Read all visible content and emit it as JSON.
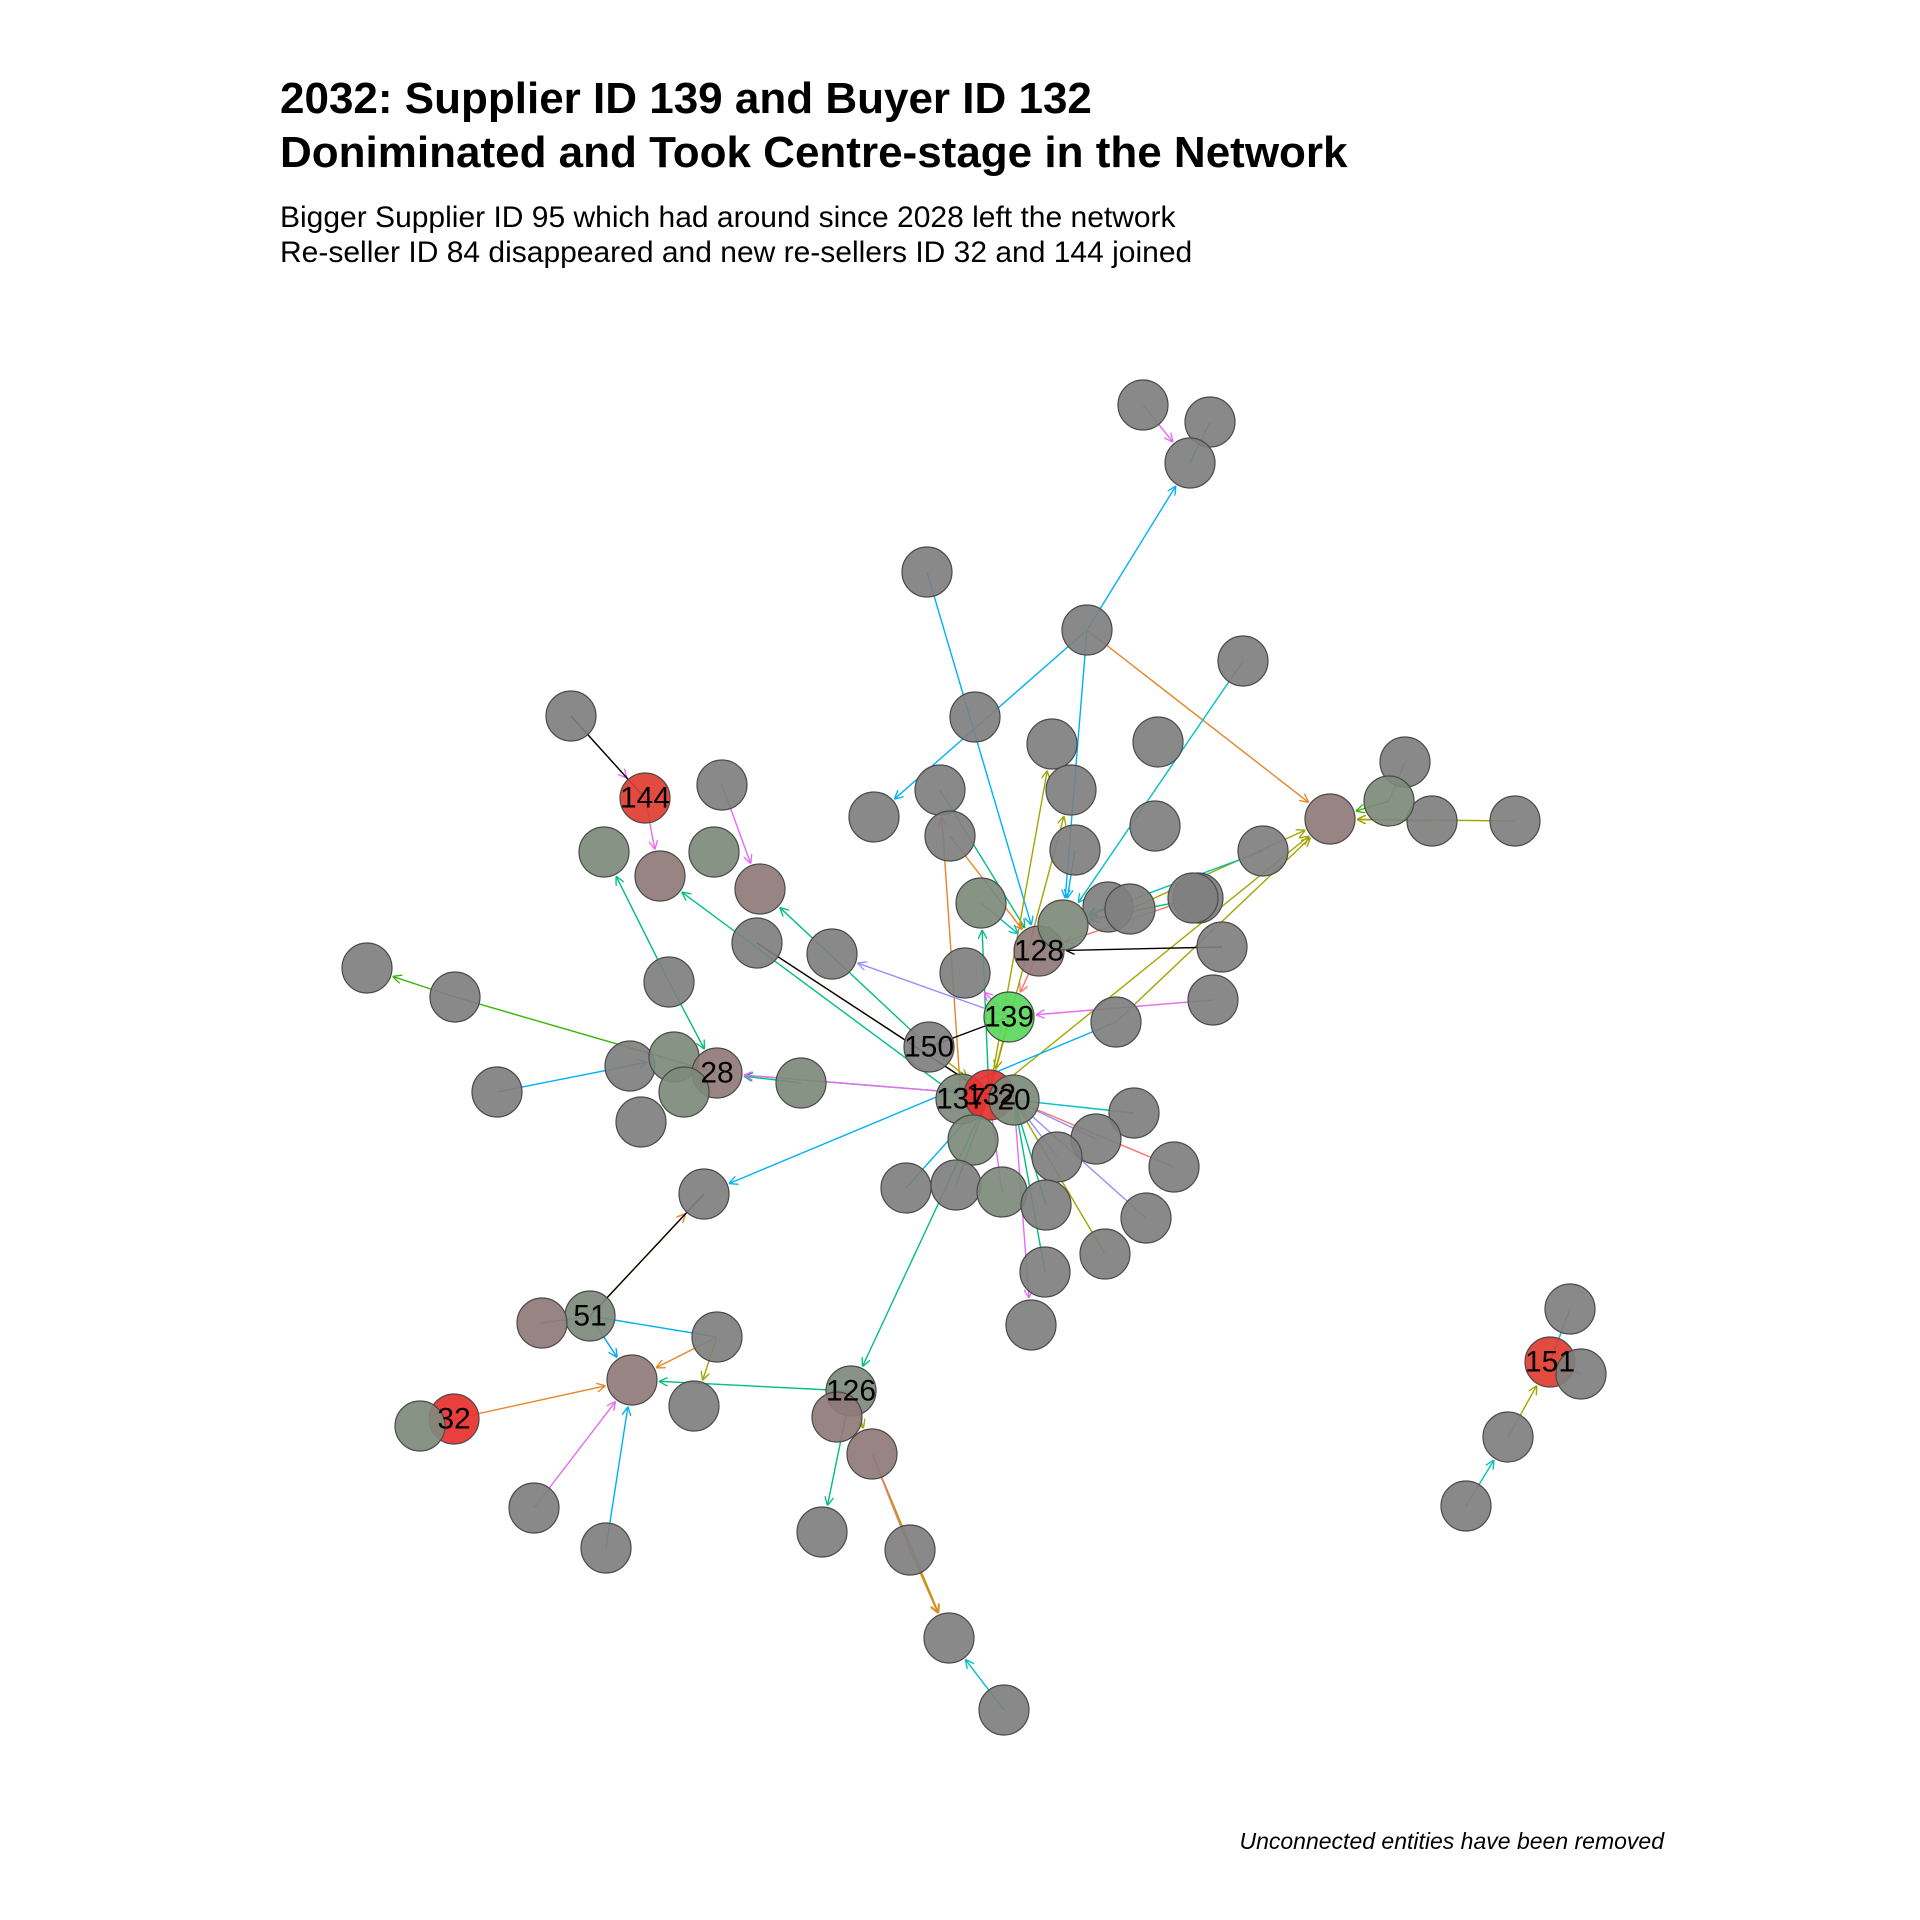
{
  "header": {
    "title_line1": "2032: Supplier ID 139 and Buyer ID 132",
    "title_line2": "Doniminated and Took Centre-stage in the Network",
    "subtitle_line1": "Bigger Supplier ID 95 which had around since 2028 left the network",
    "subtitle_line2": "Re-seller ID 84 disappeared and new re-sellers ID 32 and 144 joined"
  },
  "caption": "Unconnected entities have been removed",
  "colors": {
    "background": "#ffffff",
    "node_default": "#7f7f7f",
    "node_greenish": "#7d8a7b",
    "node_reddish": "#8f7a78",
    "node_red": "#e03c30",
    "node_red_bright": "#e8302c",
    "node_green": "#5ad85a",
    "edge_palette": [
      "#f8766d",
      "#e76bf3",
      "#00b0f6",
      "#00bf7d",
      "#a3a500",
      "#e88526",
      "#9590ff",
      "#39b600",
      "#00bfc4",
      "#000000"
    ]
  },
  "labeled_nodes": [
    "144",
    "128",
    "139",
    "150",
    "137",
    "132",
    "20",
    "28",
    "51",
    "126",
    "32",
    "151"
  ]
}
